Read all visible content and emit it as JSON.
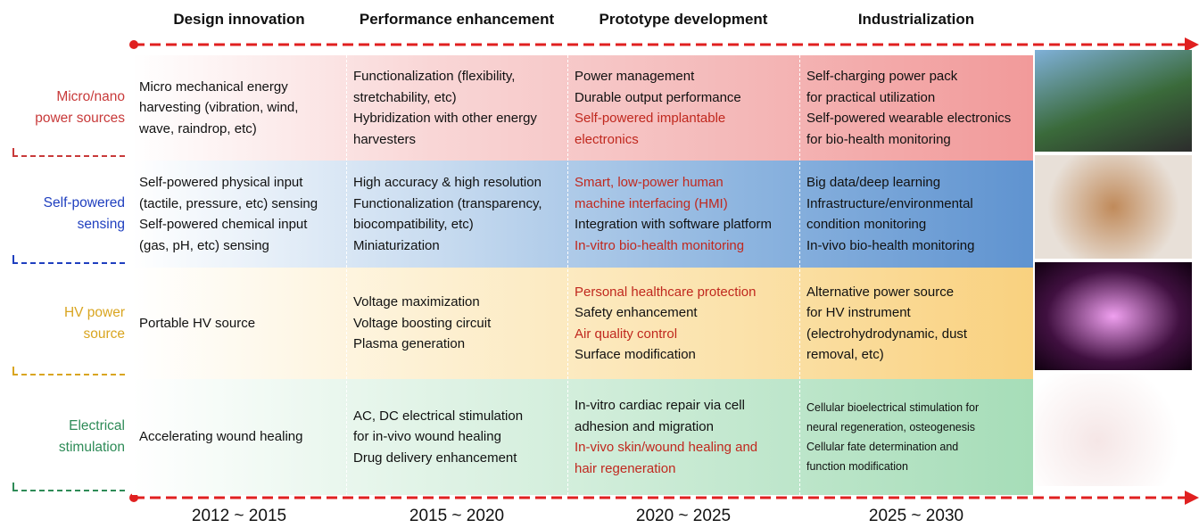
{
  "header": {
    "columns": [
      "Design innovation",
      "Performance enhancement",
      "Prototype development",
      "Industrialization"
    ]
  },
  "rows": [
    {
      "label": [
        "Micro/nano",
        "power sources"
      ],
      "color": "#c83a3a",
      "background": [
        "#ffffff",
        "#f9d6d6",
        "#f4b9b9",
        "#f29a9a"
      ],
      "cells": [
        [
          {
            "text": "Micro mechanical energy"
          },
          {
            "text": "harvesting (vibration, wind,"
          },
          {
            "text": "wave, raindrop, etc)"
          }
        ],
        [
          {
            "text": "Functionalization (flexibility,"
          },
          {
            "text": "stretchability, etc)"
          },
          {
            "text": "Hybridization with other energy"
          },
          {
            "text": "harvesters"
          }
        ],
        [
          {
            "text": "Power management"
          },
          {
            "text": "Durable output performance"
          },
          {
            "text": "Self-powered implantable",
            "color": "#c0281e"
          },
          {
            "text": "electronics",
            "color": "#c0281e"
          }
        ],
        [
          {
            "text": "Self-charging power pack"
          },
          {
            "text": "for practical utilization"
          },
          {
            "text": "Self-powered wearable electronics"
          },
          {
            "text": "for bio-health monitoring"
          }
        ]
      ]
    },
    {
      "label": [
        "Self-powered",
        "sensing"
      ],
      "color": "#1f3fbf",
      "background": [
        "#ffffff",
        "#c9dcf0",
        "#8fb6e0",
        "#5f93d0"
      ],
      "cells": [
        [
          {
            "text": "Self-powered physical input"
          },
          {
            "text": "(tactile, pressure, etc) sensing"
          },
          {
            "text": "Self-powered chemical input"
          },
          {
            "text": "(gas, pH, etc) sensing"
          }
        ],
        [
          {
            "text": "High accuracy & high resolution"
          },
          {
            "text": "Functionalization (transparency,"
          },
          {
            "text": "biocompatibility, etc)"
          },
          {
            "text": "Miniaturization"
          }
        ],
        [
          {
            "text": "Smart, low-power human",
            "color": "#c0281e"
          },
          {
            "text": "machine interfacing (HMI)",
            "color": "#c0281e"
          },
          {
            "text": "Integration with software platform"
          },
          {
            "text": "In-vitro bio-health monitoring",
            "color": "#c0281e"
          }
        ],
        [
          {
            "text": "Big data/deep learning"
          },
          {
            "text": "Infrastructure/environmental"
          },
          {
            "text": "condition monitoring"
          },
          {
            "text": "In-vivo  bio-health monitoring"
          }
        ]
      ]
    },
    {
      "label": [
        "HV power",
        "source"
      ],
      "color": "#d9a520",
      "background": [
        "#ffffff",
        "#fdf0d2",
        "#fbe2ab",
        "#f9d17f"
      ],
      "cells": [
        [
          {
            "text": "Portable HV source"
          }
        ],
        [
          {
            "text": "Voltage maximization"
          },
          {
            "text": "Voltage boosting circuit"
          },
          {
            "text": "Plasma generation"
          }
        ],
        [
          {
            "text": "Personal healthcare protection",
            "color": "#c0281e"
          },
          {
            "text": "Safety enhancement"
          },
          {
            "text": "Air quality control",
            "color": "#c0281e"
          },
          {
            "text": "Surface modification"
          }
        ],
        [
          {
            "text": "Alternative power source"
          },
          {
            "text": "for HV instrument"
          },
          {
            "text": "(electrohydrodynamic, dust"
          },
          {
            "text": "removal, etc)"
          }
        ]
      ]
    },
    {
      "label": [
        "Electrical",
        "stimulation"
      ],
      "color": "#2e8b57",
      "background": [
        "#ffffff",
        "#e0f3e6",
        "#c3e8cf",
        "#a6ddb8"
      ],
      "cells": [
        [
          {
            "text": "Accelerating wound healing"
          }
        ],
        [
          {
            "text": "AC, DC electrical stimulation"
          },
          {
            "text": "for in-vivo wound healing"
          },
          {
            "text": "Drug delivery enhancement"
          }
        ],
        [
          {
            "text": "In-vitro cardiac repair via cell"
          },
          {
            "text": "adhesion and migration"
          },
          {
            "text": "In-vivo  skin/wound healing and",
            "color": "#c0281e"
          },
          {
            "text": "hair regeneration",
            "color": "#c0281e"
          }
        ],
        [
          {
            "text": "Cellular  bioelectrical  stimulation  for"
          },
          {
            "text": "neural  regeneration,  osteogenesis"
          },
          {
            "text": "Cellular  fate  determination   and"
          },
          {
            "text": "function  modification"
          }
        ]
      ]
    }
  ],
  "footer": {
    "periods": [
      "2012 ~ 2015",
      "2015 ~ 2020",
      "2020 ~ 2025",
      "2025 ~ 2030"
    ]
  }
}
